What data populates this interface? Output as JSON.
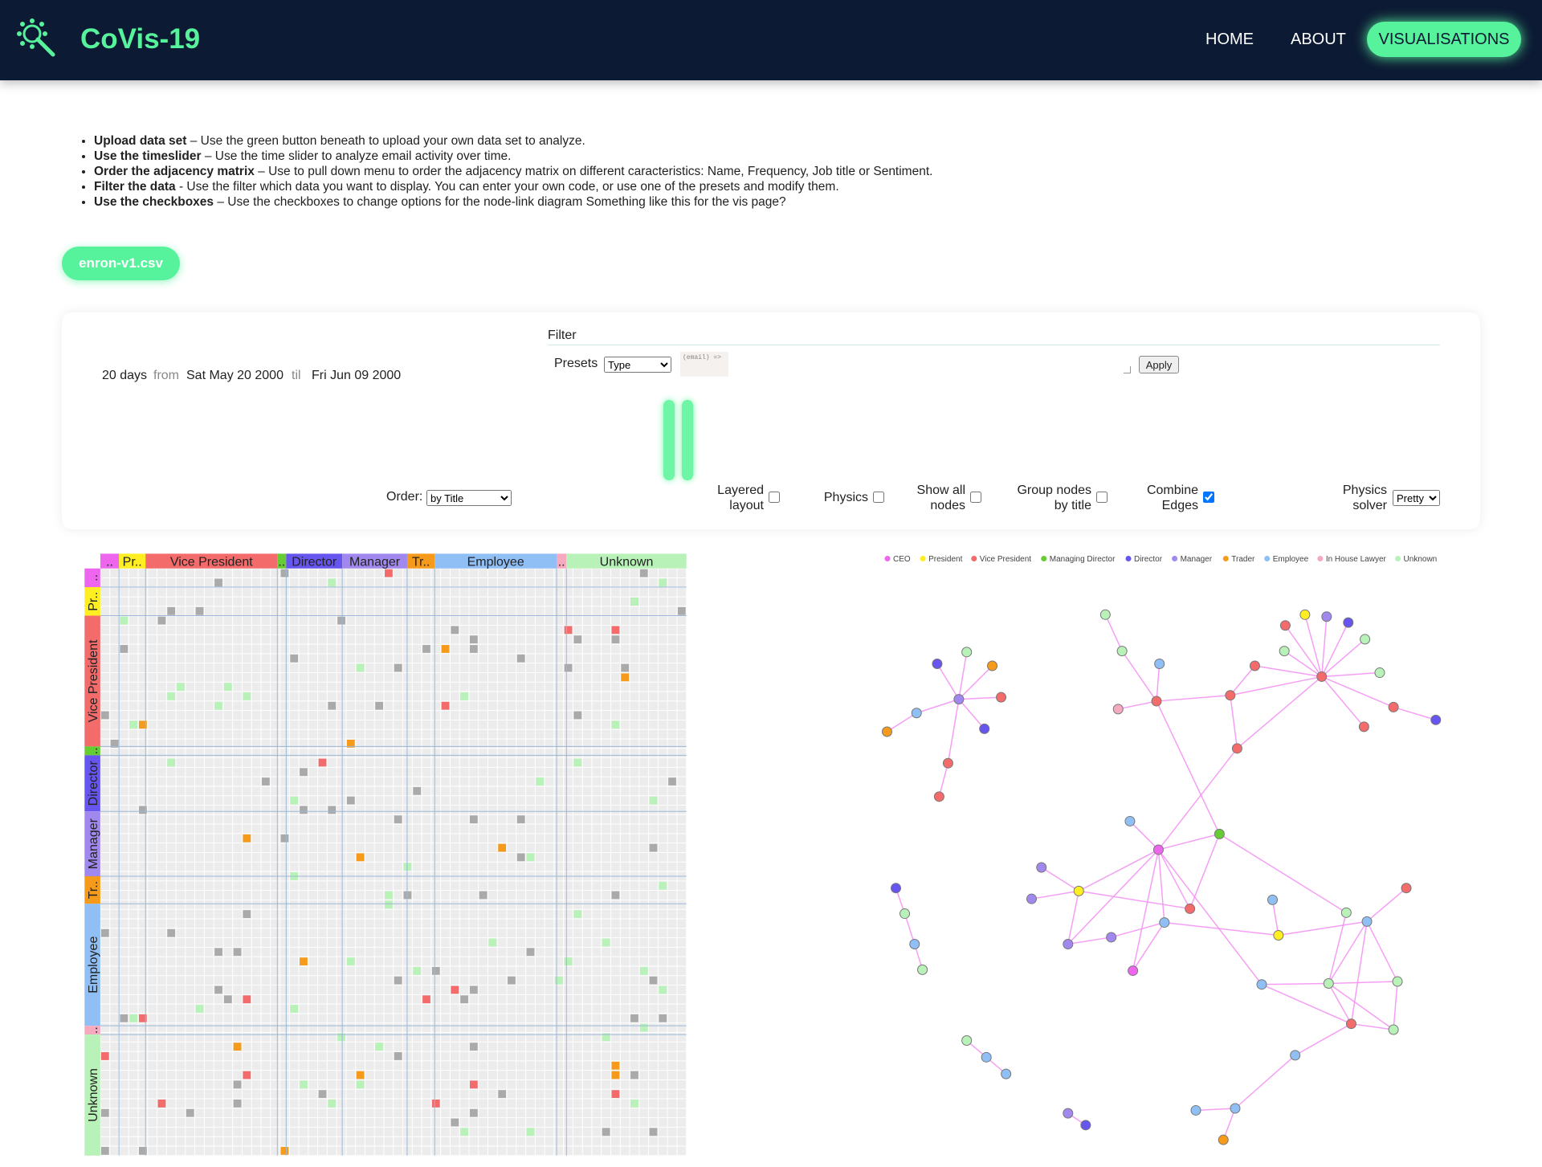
{
  "header": {
    "logo": "CoVis-19",
    "nav": [
      "HOME",
      "ABOUT",
      "VISUALISATIONS"
    ]
  },
  "instructions": [
    {
      "bold": "Upload data set",
      "text": " – Use the green button beneath to upload your own data set to analyze."
    },
    {
      "bold": "Use the timeslider",
      "text": " – Use the time slider to analyze email activity over time."
    },
    {
      "bold": "Order the adjacency matrix",
      "text": " – Use to pull down menu to order the adjacency matrix on different caracteristics: Name, Frequency, Job title or Sentiment."
    },
    {
      "bold": "Filter the data",
      "text": " - Use the filter which data you want to display. You can enter your own code, or use one of the presets and modify them."
    },
    {
      "bold": "Use the checkboxes",
      "text": " – Use the checkboxes to change options for the node-link diagram Something like this for the vis page?"
    }
  ],
  "upload": {
    "button": "enron-v1.csv"
  },
  "timeslider": {
    "days": "20 days",
    "from": "from",
    "start": "Sat May 20 2000",
    "til": "til",
    "end": "Fri Jun 09 2000"
  },
  "filter": {
    "title": "Filter",
    "presets_label": "Presets",
    "preset": "Type",
    "code": "(email) =>",
    "apply": "Apply"
  },
  "order": {
    "label": "Order:",
    "value": "by Title"
  },
  "options": [
    {
      "label": "Layered layout",
      "checked": false
    },
    {
      "label": "Physics",
      "checked": false
    },
    {
      "label": "Show all nodes",
      "checked": false
    },
    {
      "label": "Group nodes by title",
      "checked": false
    },
    {
      "label": "Combine Edges",
      "checked": true
    }
  ],
  "physics_solver": {
    "label": "Physics solver",
    "value": "Pretty"
  },
  "matrix": {
    "groups": [
      "..",
      "Pr..",
      "Vice President",
      "..",
      "Director",
      "Manager",
      "Tr..",
      "Employee",
      "..",
      "Unknown"
    ]
  },
  "legend": [
    {
      "name": "CEO",
      "color": "#ee66ee"
    },
    {
      "name": "President",
      "color": "#ffee22"
    },
    {
      "name": "Vice President",
      "color": "#f36b6b"
    },
    {
      "name": "Managing Director",
      "color": "#66cc33"
    },
    {
      "name": "Director",
      "color": "#6655ee"
    },
    {
      "name": "Manager",
      "color": "#a088ee"
    },
    {
      "name": "Trader",
      "color": "#f59a1a"
    },
    {
      "name": "Employee",
      "color": "#90bff5"
    },
    {
      "name": "In House Lawyer",
      "color": "#f5aac0"
    },
    {
      "name": "Unknown",
      "color": "#b8f2b8"
    }
  ]
}
